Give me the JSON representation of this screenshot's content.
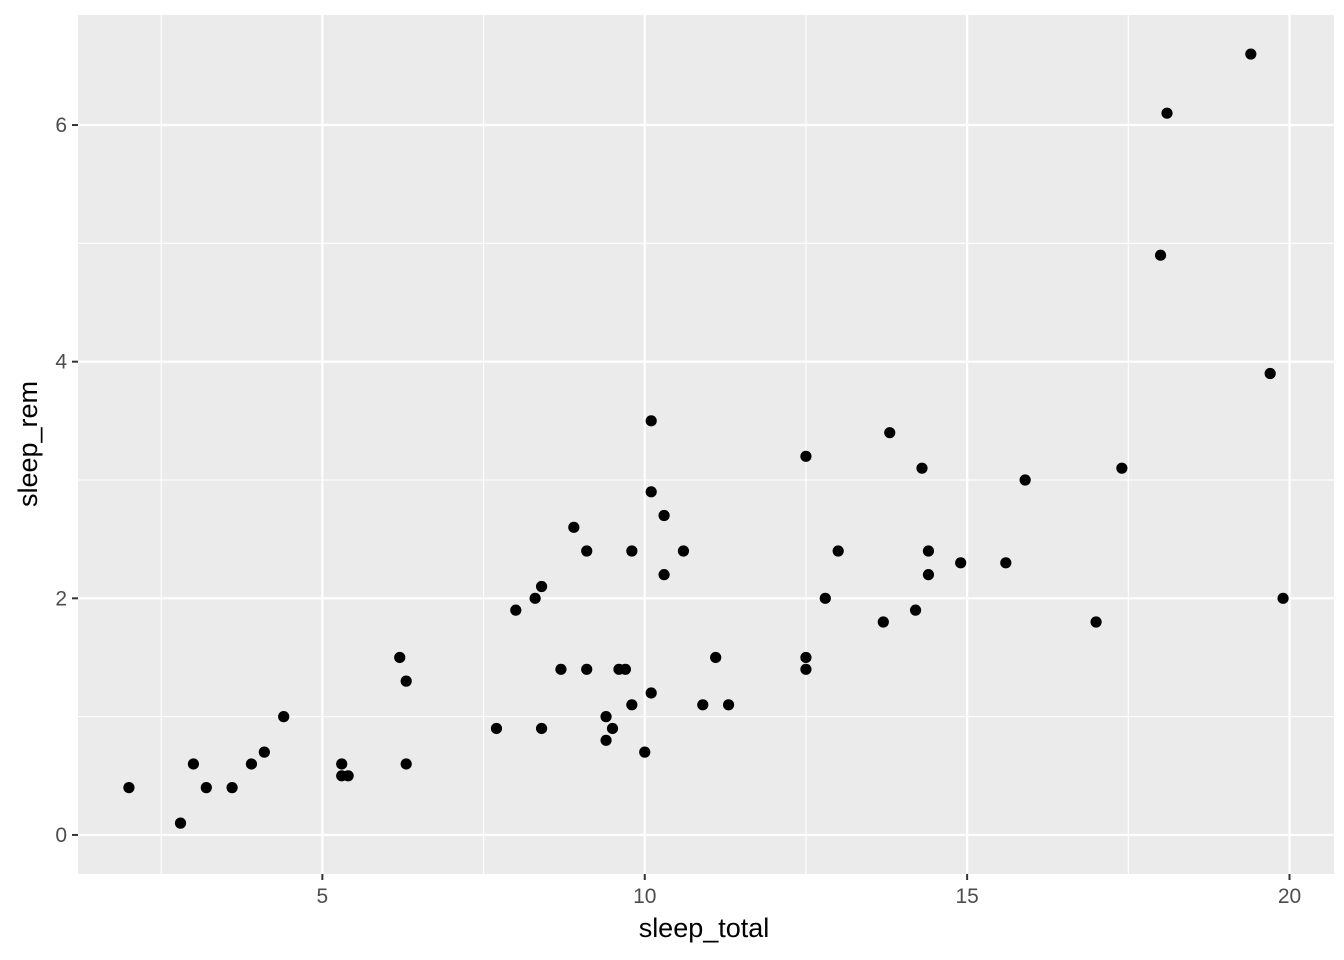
{
  "chart_data": {
    "type": "scatter",
    "xlabel": "sleep_total",
    "ylabel": "sleep_rem",
    "xlim": [
      1.21,
      20.69
    ],
    "ylim": [
      -0.33,
      6.93
    ],
    "x_ticks": [
      5,
      10,
      15,
      20
    ],
    "x_tick_labels": [
      "5",
      "10",
      "15",
      "20"
    ],
    "y_ticks": [
      0,
      2,
      4,
      6
    ],
    "y_tick_labels": [
      "0",
      "2",
      "4",
      "6"
    ],
    "x_minor_ticks": [
      2.5,
      7.5,
      12.5,
      17.5
    ],
    "y_minor_ticks": [
      1,
      3,
      5
    ],
    "grid": true,
    "legend": "none",
    "colors": {
      "panel_background": "#ebebeb",
      "grid_line": "#ffffff",
      "point": "#000000",
      "tick_label": "#4d4d4d",
      "tick_mark": "#333333"
    },
    "points": [
      {
        "x": 2.0,
        "y": 0.4
      },
      {
        "x": 2.8,
        "y": 0.1
      },
      {
        "x": 3.0,
        "y": 0.6
      },
      {
        "x": 3.2,
        "y": 0.4
      },
      {
        "x": 3.6,
        "y": 0.4
      },
      {
        "x": 3.9,
        "y": 0.6
      },
      {
        "x": 4.1,
        "y": 0.7
      },
      {
        "x": 4.4,
        "y": 1.0
      },
      {
        "x": 5.3,
        "y": 0.6
      },
      {
        "x": 5.3,
        "y": 0.5
      },
      {
        "x": 5.4,
        "y": 0.5
      },
      {
        "x": 6.2,
        "y": 1.5
      },
      {
        "x": 6.3,
        "y": 1.3
      },
      {
        "x": 6.3,
        "y": 0.6
      },
      {
        "x": 7.7,
        "y": 0.9
      },
      {
        "x": 8.0,
        "y": 1.9
      },
      {
        "x": 8.3,
        "y": 2.0
      },
      {
        "x": 8.4,
        "y": 2.1
      },
      {
        "x": 8.4,
        "y": 0.9
      },
      {
        "x": 8.7,
        "y": 1.4
      },
      {
        "x": 8.9,
        "y": 2.6
      },
      {
        "x": 9.1,
        "y": 2.4
      },
      {
        "x": 9.1,
        "y": 1.4
      },
      {
        "x": 9.4,
        "y": 1.0
      },
      {
        "x": 9.4,
        "y": 0.8
      },
      {
        "x": 9.5,
        "y": 0.9
      },
      {
        "x": 9.6,
        "y": 1.4
      },
      {
        "x": 9.7,
        "y": 1.4
      },
      {
        "x": 9.8,
        "y": 2.4
      },
      {
        "x": 9.8,
        "y": 1.1
      },
      {
        "x": 10.0,
        "y": 0.7
      },
      {
        "x": 10.1,
        "y": 3.5
      },
      {
        "x": 10.1,
        "y": 2.9
      },
      {
        "x": 10.1,
        "y": 1.2
      },
      {
        "x": 10.3,
        "y": 2.7
      },
      {
        "x": 10.3,
        "y": 2.2
      },
      {
        "x": 10.6,
        "y": 2.4
      },
      {
        "x": 10.9,
        "y": 1.1
      },
      {
        "x": 11.1,
        "y": 1.5
      },
      {
        "x": 11.3,
        "y": 1.1
      },
      {
        "x": 12.5,
        "y": 3.2
      },
      {
        "x": 12.5,
        "y": 1.5
      },
      {
        "x": 12.5,
        "y": 1.4
      },
      {
        "x": 12.8,
        "y": 2.0
      },
      {
        "x": 13.0,
        "y": 2.4
      },
      {
        "x": 13.7,
        "y": 1.8
      },
      {
        "x": 13.8,
        "y": 3.4
      },
      {
        "x": 14.2,
        "y": 1.9
      },
      {
        "x": 14.3,
        "y": 3.1
      },
      {
        "x": 14.4,
        "y": 2.4
      },
      {
        "x": 14.4,
        "y": 2.2
      },
      {
        "x": 14.9,
        "y": 2.3
      },
      {
        "x": 15.6,
        "y": 2.3
      },
      {
        "x": 15.9,
        "y": 3.0
      },
      {
        "x": 17.0,
        "y": 1.8
      },
      {
        "x": 17.4,
        "y": 3.1
      },
      {
        "x": 18.0,
        "y": 4.9
      },
      {
        "x": 18.1,
        "y": 6.1
      },
      {
        "x": 19.4,
        "y": 6.6
      },
      {
        "x": 19.7,
        "y": 3.9
      },
      {
        "x": 19.9,
        "y": 2.0
      }
    ]
  }
}
